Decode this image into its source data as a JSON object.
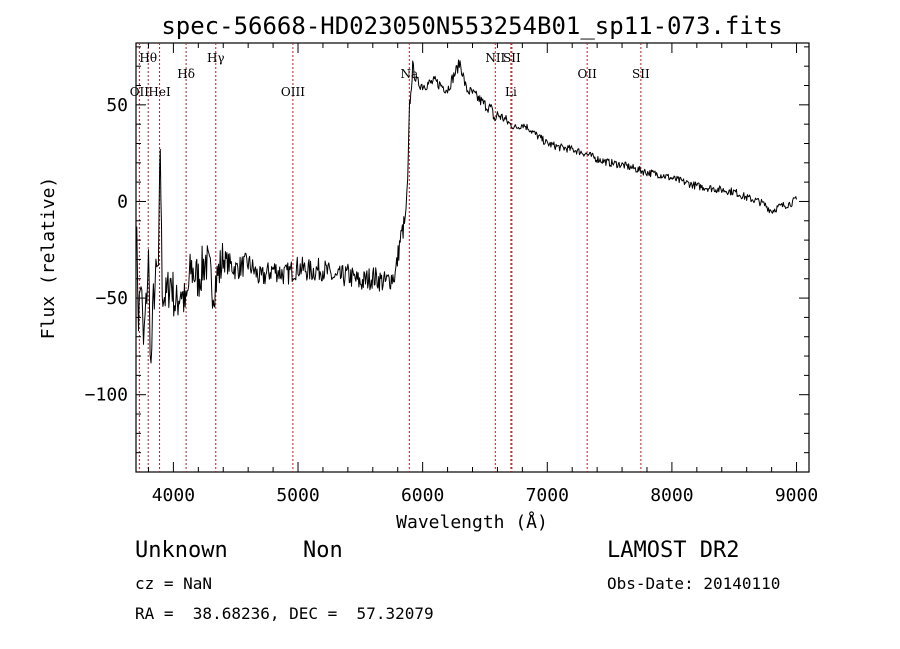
{
  "chart_data": {
    "type": "line",
    "title": "spec-56668-HD023050N553254B01_sp11-073.fits",
    "xlabel": "Wavelength (Å)",
    "ylabel": "Flux (relative)",
    "xlim": [
      3700,
      9100
    ],
    "ylim": [
      -140,
      82
    ],
    "xticks": [
      4000,
      5000,
      6000,
      7000,
      8000,
      9000
    ],
    "yticks": [
      -100,
      -50,
      0,
      50
    ],
    "grid": false,
    "line_color": "#000000",
    "marker_color": "#b22222",
    "lines": [
      {
        "label": "Hθ",
        "x": 3798,
        "row": 1
      },
      {
        "label": "OII",
        "x": 3727,
        "row": 3
      },
      {
        "label": "HeI",
        "x": 3889,
        "row": 3
      },
      {
        "label": "Hδ",
        "x": 4102,
        "row": 2
      },
      {
        "label": "Hγ",
        "x": 4340,
        "row": 1
      },
      {
        "label": "OIII",
        "x": 4959,
        "row": 3
      },
      {
        "label": "Na",
        "x": 5893,
        "row": 2
      },
      {
        "label": "NII",
        "x": 6583,
        "row": 1
      },
      {
        "label": "SII",
        "x": 6716,
        "row": 1
      },
      {
        "label": "Li",
        "x": 6708,
        "row": 3
      },
      {
        "label": "OII",
        "x": 7320,
        "row": 2
      },
      {
        "label": "SII",
        "x": 7751,
        "row": 2
      }
    ],
    "series": [
      {
        "x": [
          3700,
          3720,
          3740,
          3760,
          3780,
          3800,
          3820,
          3840,
          3860,
          3880,
          3895,
          3910,
          3940,
          3980,
          4020,
          4060,
          4100,
          4140,
          4200,
          4260,
          4320,
          4400,
          4500,
          4600,
          4700,
          4800,
          4900,
          5000,
          5100,
          5200,
          5300,
          5400,
          5500,
          5600,
          5700,
          5780,
          5820,
          5860,
          5880,
          5895,
          5905,
          5920,
          5950,
          6000,
          6100,
          6200,
          6250,
          6300,
          6350,
          6400,
          6500,
          6550,
          6580,
          6600,
          6650,
          6700,
          6750,
          6800,
          6850,
          6900,
          7000,
          7100,
          7200,
          7300,
          7400,
          7500,
          7600,
          7700,
          7800,
          7900,
          8000,
          8100,
          8200,
          8300,
          8400,
          8500,
          8600,
          8700,
          8750,
          8800,
          8850,
          8900,
          8950,
          9000
        ],
        "values": [
          -5,
          -60,
          -40,
          -75,
          -55,
          -30,
          -88,
          -50,
          -40,
          -35,
          30,
          -45,
          -50,
          -40,
          -55,
          -45,
          -55,
          -35,
          -40,
          -30,
          -45,
          -30,
          -35,
          -32,
          -40,
          -35,
          -38,
          -34,
          -36,
          -35,
          -40,
          -38,
          -42,
          -39,
          -42,
          -38,
          -20,
          -10,
          10,
          50,
          55,
          70,
          62,
          60,
          62,
          58,
          65,
          72,
          58,
          56,
          50,
          48,
          42,
          45,
          43,
          40,
          38,
          40,
          38,
          35,
          30,
          28,
          27,
          25,
          22,
          20,
          19,
          17,
          15,
          14,
          12,
          10,
          8,
          7,
          6,
          5,
          2,
          0,
          -2,
          -5,
          -3,
          -2,
          -1,
          1
        ]
      }
    ]
  },
  "footer": {
    "object_class": "Unknown",
    "object_subclass": "Non",
    "survey": "LAMOST DR2",
    "cz": "cz = NaN",
    "obs_date": "Obs-Date: 20140110",
    "coords": "RA =  38.68236, DEC =  57.32079"
  }
}
